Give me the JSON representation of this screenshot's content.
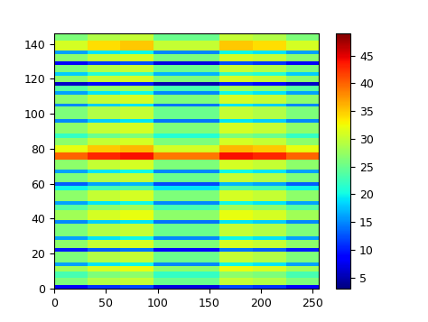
{
  "chart_data": {
    "type": "heatmap",
    "color": "jet",
    "x_edges": [
      0,
      32,
      64,
      96,
      128,
      160,
      192,
      224,
      256
    ],
    "y_edges": [
      0,
      2,
      6,
      10,
      13,
      15,
      21,
      23,
      28,
      30,
      37,
      39,
      45,
      48,
      50,
      56,
      59,
      61,
      66,
      68,
      74,
      78,
      82,
      86,
      89,
      95,
      97,
      104,
      106,
      111,
      113,
      116,
      118,
      122,
      124,
      128,
      130,
      134,
      136,
      142,
      146
    ],
    "cells": [
      [
        8,
        11,
        12,
        7,
        7,
        12,
        11,
        8
      ],
      [
        26,
        29,
        30,
        25,
        25,
        30,
        29,
        26
      ],
      [
        23,
        26,
        27,
        22,
        22,
        27,
        26,
        23
      ],
      [
        28,
        31,
        32,
        27,
        27,
        32,
        31,
        28
      ],
      [
        16,
        19,
        20,
        15,
        15,
        20,
        19,
        16
      ],
      [
        26,
        29,
        30,
        25,
        25,
        30,
        29,
        26
      ],
      [
        10,
        13,
        14,
        9,
        9,
        14,
        13,
        10
      ],
      [
        27,
        30,
        31,
        26,
        26,
        31,
        30,
        27
      ],
      [
        16,
        19,
        20,
        15,
        15,
        20,
        19,
        16
      ],
      [
        26,
        29,
        30,
        25,
        25,
        30,
        29,
        26
      ],
      [
        15,
        18,
        19,
        14,
        14,
        19,
        18,
        15
      ],
      [
        28,
        31,
        32,
        27,
        27,
        32,
        31,
        28
      ],
      [
        24,
        27,
        28,
        23,
        23,
        28,
        27,
        24
      ],
      [
        16,
        19,
        20,
        15,
        15,
        20,
        19,
        16
      ],
      [
        27,
        30,
        31,
        26,
        26,
        31,
        30,
        27
      ],
      [
        20,
        23,
        24,
        19,
        19,
        24,
        23,
        20
      ],
      [
        13,
        16,
        17,
        12,
        12,
        17,
        16,
        13
      ],
      [
        26,
        29,
        30,
        25,
        25,
        30,
        29,
        26
      ],
      [
        16,
        19,
        20,
        15,
        15,
        20,
        19,
        16
      ],
      [
        27,
        30,
        31,
        26,
        26,
        31,
        30,
        27
      ],
      [
        40,
        43,
        44,
        39,
        39,
        44,
        43,
        40
      ],
      [
        32,
        35,
        36,
        31,
        31,
        36,
        35,
        32
      ],
      [
        27,
        30,
        31,
        26,
        26,
        31,
        30,
        27
      ],
      [
        22,
        25,
        26,
        21,
        21,
        26,
        25,
        22
      ],
      [
        27,
        30,
        31,
        26,
        26,
        31,
        30,
        27
      ],
      [
        15,
        18,
        19,
        14,
        14,
        19,
        18,
        15
      ],
      [
        26,
        29,
        30,
        25,
        25,
        30,
        29,
        26
      ],
      [
        15,
        18,
        19,
        14,
        14,
        19,
        18,
        15
      ],
      [
        27,
        30,
        31,
        26,
        26,
        31,
        30,
        27
      ],
      [
        16,
        19,
        20,
        15,
        15,
        20,
        19,
        16
      ],
      [
        24,
        27,
        28,
        23,
        23,
        28,
        27,
        24
      ],
      [
        6,
        9,
        10,
        5,
        5,
        10,
        9,
        6
      ],
      [
        27,
        30,
        31,
        26,
        26,
        31,
        30,
        27
      ],
      [
        18,
        21,
        22,
        17,
        17,
        22,
        21,
        18
      ],
      [
        26,
        29,
        30,
        25,
        25,
        30,
        29,
        26
      ],
      [
        8,
        11,
        12,
        7,
        7,
        12,
        11,
        8
      ],
      [
        27,
        30,
        31,
        26,
        26,
        31,
        30,
        27
      ],
      [
        16,
        19,
        20,
        15,
        15,
        20,
        19,
        16
      ],
      [
        31,
        34,
        35,
        30,
        30,
        35,
        34,
        31
      ],
      [
        26,
        29,
        30,
        25,
        25,
        30,
        29,
        26
      ]
    ],
    "xlim": [
      0,
      256
    ],
    "xticks": [
      0,
      50,
      100,
      150,
      200,
      250
    ],
    "ylim": [
      0,
      146
    ],
    "yticks": [
      0,
      20,
      40,
      60,
      80,
      100,
      120,
      140
    ],
    "colorbar_range": [
      3,
      49
    ],
    "colorbar_ticks": [
      5,
      10,
      15,
      20,
      25,
      30,
      35,
      40,
      45
    ]
  }
}
